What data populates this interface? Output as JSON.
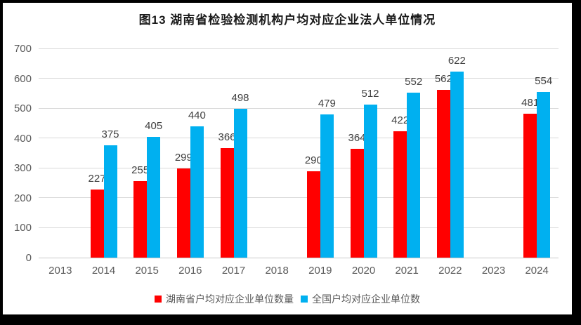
{
  "title": "图13 湖南省检验检测机构户均对应企业法人单位情况",
  "chart_data": {
    "type": "bar",
    "title": "图13 湖南省检验检测机构户均对应企业法人单位情况",
    "categories": [
      "2013",
      "2014",
      "2015",
      "2016",
      "2017",
      "2018",
      "2019",
      "2020",
      "2021",
      "2022",
      "2023",
      "2024"
    ],
    "series": [
      {
        "name": "湖南省户均对应企业单位数量",
        "color": "#ff0000",
        "values": [
          null,
          227,
          255,
          299,
          366,
          null,
          290,
          364,
          422,
          562,
          null,
          481
        ]
      },
      {
        "name": "全国户均对应企业单位数",
        "color": "#00b0f0",
        "values": [
          null,
          375,
          405,
          440,
          498,
          null,
          479,
          512,
          552,
          622,
          null,
          554
        ]
      }
    ],
    "ylim": [
      0,
      700
    ],
    "yticks": [
      0,
      100,
      200,
      300,
      400,
      500,
      600,
      700
    ],
    "grid": true,
    "legend_position": "bottom"
  },
  "colors": {
    "series1": "#ff0000",
    "series2": "#00b0f0",
    "gridline": "#d9d9d9",
    "axis_text": "#595959",
    "label_text": "#404040",
    "frame_border": "#000000",
    "background": "#ffffff"
  }
}
